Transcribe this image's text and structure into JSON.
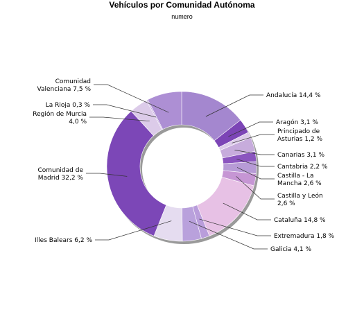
{
  "chart_data": {
    "type": "pie",
    "title": "Vehículos por Comunidad Autónoma",
    "subtitle": "numero",
    "slices": [
      {
        "name": "Andalucía",
        "value": 14.4,
        "label": [
          "Andalucía 14,4 %"
        ],
        "color": "#a487cf"
      },
      {
        "name": "Aragón",
        "value": 3.1,
        "label": [
          "Aragón 3,1 %"
        ],
        "color": "#7c45b6"
      },
      {
        "name": "Principado de Asturias",
        "value": 1.2,
        "label": [
          "Principado de",
          "Asturias 1,2 %"
        ],
        "color": "#dccbe9"
      },
      {
        "name": "Canarias",
        "value": 3.1,
        "label": [
          "Canarias 3,1 %"
        ],
        "color": "#c7acdc"
      },
      {
        "name": "Cantabria",
        "value": 2.2,
        "label": [
          "Cantabria 2,2 %"
        ],
        "color": "#8b55bf"
      },
      {
        "name": "Castilla - La Mancha",
        "value": 2.6,
        "label": [
          "Castilla - La",
          "Mancha 2,6 %"
        ],
        "color": "#b79bd6"
      },
      {
        "name": "Castilla y León",
        "value": 2.6,
        "label": [
          "Castilla y León",
          "2,6 %"
        ],
        "color": "#c696d4"
      },
      {
        "name": "Cataluña",
        "value": 14.8,
        "label": [
          "Cataluña 14,8 %"
        ],
        "color": "#e7c1e5"
      },
      {
        "name": "Extremadura",
        "value": 1.8,
        "label": [
          "Extremadura 1,8 %"
        ],
        "color": "#b99ddb"
      },
      {
        "name": "Galicia",
        "value": 4.1,
        "label": [
          "Galicia 4,1 %"
        ],
        "color": "#b9a1dc"
      },
      {
        "name": "Illes Balears",
        "value": 6.2,
        "label": [
          "Illes Balears 6,2 %"
        ],
        "color": "#e5dcf0"
      },
      {
        "name": "Comunidad de Madrid",
        "value": 32.2,
        "label": [
          "Comunidad de",
          "Madrid 32,2 %"
        ],
        "color": "#7c47b7"
      },
      {
        "name": "Región de Murcia",
        "value": 4.0,
        "label": [
          "Región de Murcia",
          "4,0 %"
        ],
        "color": "#dccbe9"
      },
      {
        "name": "La Rioja",
        "value": 0.3,
        "label": [
          "La Rioja 0,3 %"
        ],
        "color": "#c4addf"
      },
      {
        "name": "Comunidad Valenciana",
        "value": 7.5,
        "label": [
          "Comunidad",
          "Valenciana 7,5 %"
        ],
        "color": "#ad8fd4"
      }
    ]
  }
}
